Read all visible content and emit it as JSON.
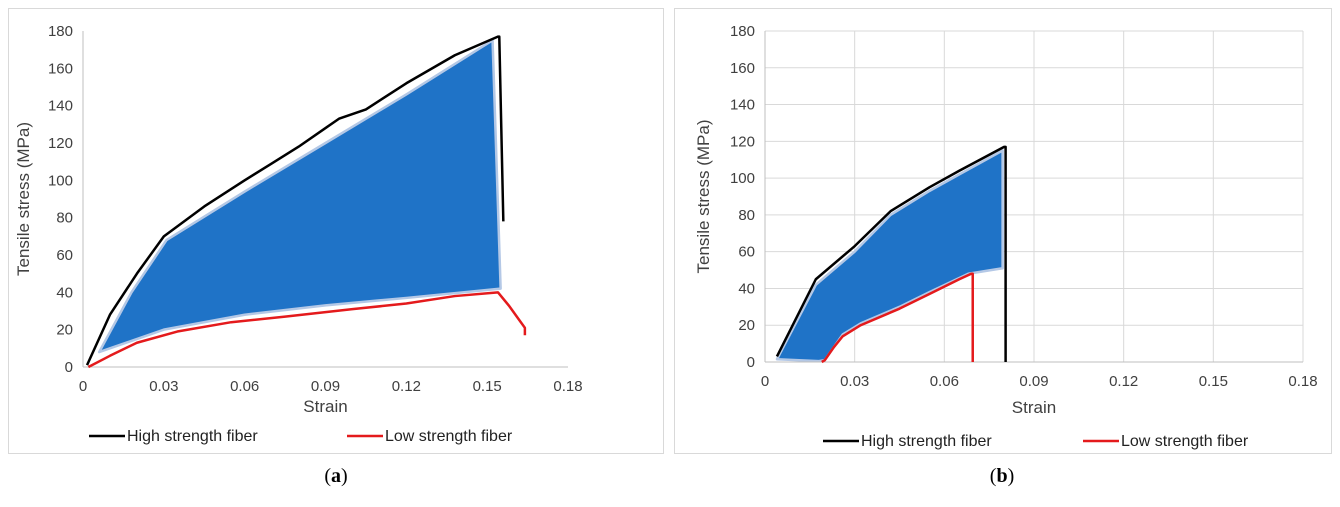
{
  "chart_data": [
    {
      "type": "line",
      "panel": "a",
      "xlabel": "Strain",
      "ylabel": "Tensile stress (MPa)",
      "xlim": [
        0,
        0.18
      ],
      "ylim": [
        0,
        180
      ],
      "xticks": [
        0,
        0.03,
        0.06,
        0.09,
        0.12,
        0.15,
        0.18
      ],
      "xtick_labels": [
        "0",
        "0.03",
        "0.06",
        "0.09",
        "0.12",
        "0.15",
        "0.18"
      ],
      "yticks": [
        0,
        20,
        40,
        60,
        80,
        100,
        120,
        140,
        160,
        180
      ],
      "grid": false,
      "legend": "bottom",
      "series": [
        {
          "name": "High strength fiber",
          "color": "#000000",
          "x": [
            0.0015,
            0.01,
            0.02,
            0.03,
            0.045,
            0.06,
            0.07,
            0.08,
            0.09,
            0.095,
            0.105,
            0.12,
            0.138,
            0.154,
            0.1545,
            0.156
          ],
          "y": [
            1,
            28,
            50,
            70,
            86,
            100,
            109,
            118,
            128,
            133,
            138,
            152,
            167,
            177,
            177,
            78
          ]
        },
        {
          "name": "Low strength fiber",
          "color": "#e41a1c",
          "x": [
            0.002,
            0.01,
            0.02,
            0.035,
            0.055,
            0.075,
            0.1,
            0.12,
            0.138,
            0.154,
            0.158,
            0.162,
            0.164,
            0.164
          ],
          "y": [
            0,
            6,
            13,
            19,
            24,
            27,
            31,
            34,
            38,
            40,
            33,
            25,
            21,
            17
          ]
        }
      ],
      "band": {
        "color": "#1f73c7",
        "edge_color": "#b4c8e6",
        "upper_x": [
          0.006,
          0.018,
          0.031,
          0.06,
          0.09,
          0.12,
          0.152
        ],
        "upper_y": [
          8,
          40,
          68,
          94,
          120,
          146,
          175
        ],
        "lower_x": [
          0.155,
          0.12,
          0.09,
          0.06,
          0.03,
          0.006
        ],
        "lower_y": [
          42,
          37,
          33,
          28,
          20,
          8
        ]
      }
    },
    {
      "type": "line",
      "panel": "b",
      "xlabel": "Strain",
      "ylabel": "Tensile stress (MPa)",
      "xlim": [
        0,
        0.18
      ],
      "ylim": [
        0,
        180
      ],
      "xticks": [
        0,
        0.03,
        0.06,
        0.09,
        0.12,
        0.15,
        0.18
      ],
      "xtick_labels": [
        "0",
        "0.03",
        "0.06",
        "0.09",
        "0.12",
        "0.15",
        "0.18"
      ],
      "yticks": [
        0,
        20,
        40,
        60,
        80,
        100,
        120,
        140,
        160,
        180
      ],
      "grid": true,
      "legend": "bottom",
      "series": [
        {
          "name": "High strength fiber",
          "color": "#000000",
          "x": [
            0.004,
            0.017,
            0.03,
            0.042,
            0.055,
            0.065,
            0.08,
            0.0805,
            0.0805
          ],
          "y": [
            3,
            45,
            63,
            82,
            95,
            104,
            117,
            117,
            0
          ]
        },
        {
          "name": "Low strength fiber",
          "color": "#e41a1c",
          "x": [
            0.019,
            0.02,
            0.023,
            0.026,
            0.032,
            0.045,
            0.055,
            0.065,
            0.069,
            0.0695,
            0.0695
          ],
          "y": [
            0,
            1,
            8,
            14,
            20,
            29,
            37,
            45,
            48,
            48,
            0
          ]
        }
      ],
      "band": {
        "color": "#1f73c7",
        "edge_color": "#b4c8e6",
        "upper_x": [
          0.004,
          0.017,
          0.03,
          0.042,
          0.055,
          0.065,
          0.0795
        ],
        "upper_y": [
          1.5,
          42,
          60,
          80,
          93,
          102,
          115
        ],
        "lower_x": [
          0.0795,
          0.068,
          0.055,
          0.045,
          0.032,
          0.026,
          0.023,
          0.02,
          0.018,
          0.004
        ],
        "lower_y": [
          51,
          48,
          38,
          30,
          21,
          15,
          8,
          1,
          0.5,
          1.5
        ]
      }
    }
  ],
  "captions": {
    "a": "a",
    "b": "b"
  }
}
